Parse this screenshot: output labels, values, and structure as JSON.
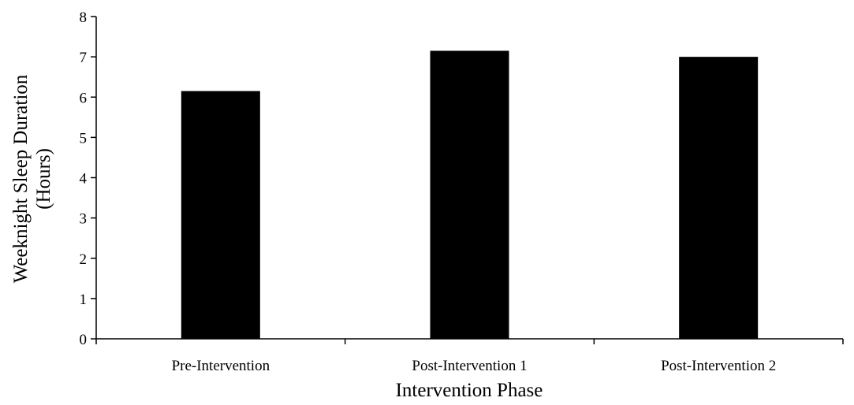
{
  "chart_data": {
    "type": "bar",
    "title": "",
    "xlabel": "Intervention Phase",
    "ylabel_lines": [
      "Weeknight Sleep Duration",
      "(Hours)"
    ],
    "categories": [
      "Pre-Intervention",
      "Post-Intervention 1",
      "Post-Intervention 2"
    ],
    "values": [
      6.15,
      7.15,
      7.0
    ],
    "ylim": [
      0,
      8
    ],
    "yticks": [
      0,
      1,
      2,
      3,
      4,
      5,
      6,
      7,
      8
    ],
    "grid": false,
    "legend": "none",
    "bar_color": "#000000"
  }
}
